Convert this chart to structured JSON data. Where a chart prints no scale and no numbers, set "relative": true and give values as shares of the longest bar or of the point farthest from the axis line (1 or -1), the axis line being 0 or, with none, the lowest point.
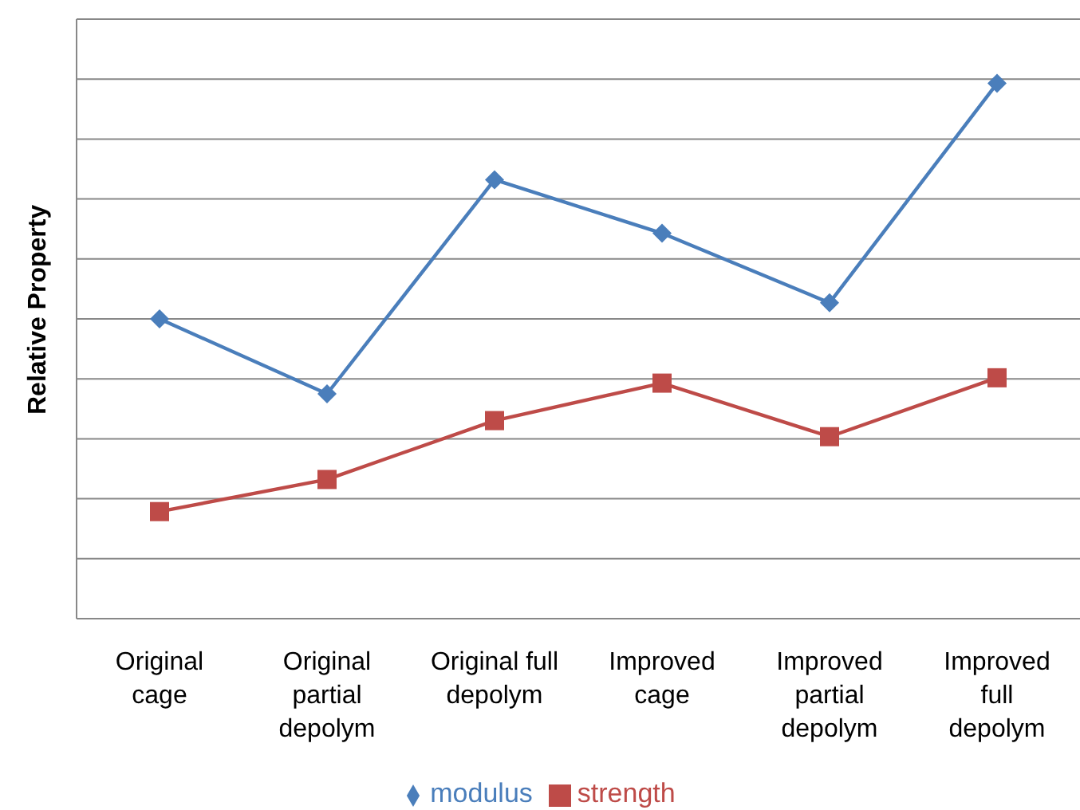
{
  "chart_data": {
    "type": "line",
    "relative": true,
    "ylabel": "Relative Property",
    "categories": [
      "Original cage",
      "Original partial depolym",
      "Original full depolym",
      "Improved cage",
      "Improved partial depolym",
      "Improved full depolym"
    ],
    "series": [
      {
        "name": "modulus",
        "color": "#4a7ebb",
        "marker": "diamond",
        "values": [
          0.56,
          0.42,
          0.82,
          0.72,
          0.59,
          1
        ]
      },
      {
        "name": "strength",
        "color": "#be4b48",
        "marker": "square",
        "values": [
          0.2,
          0.26,
          0.37,
          0.44,
          0.34,
          0.45
        ]
      }
    ],
    "grid": "y",
    "legend": "bottom",
    "line_style": "solid"
  }
}
